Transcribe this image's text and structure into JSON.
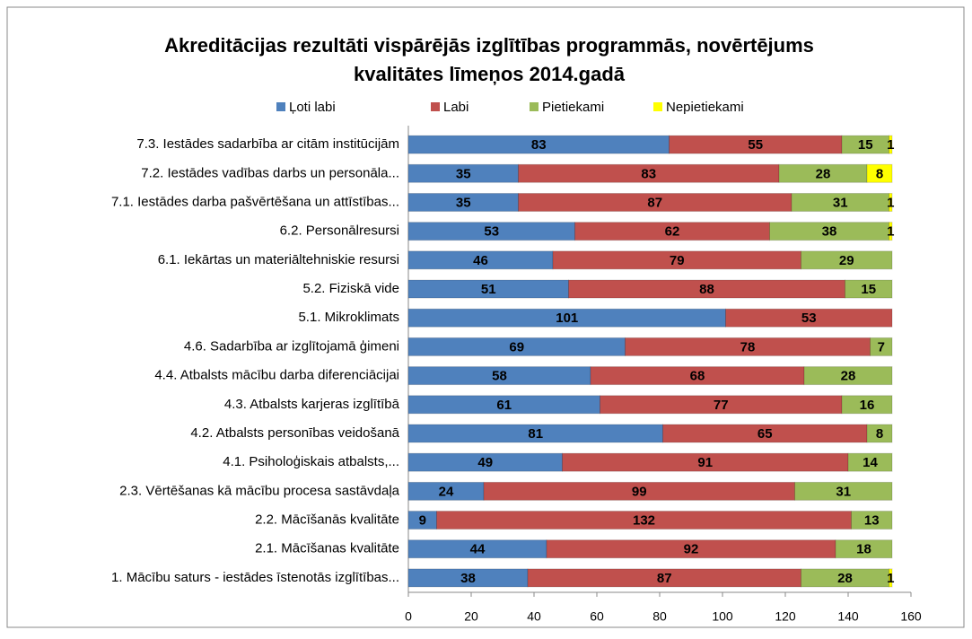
{
  "chart_data": {
    "type": "stacked-bar-horizontal",
    "title": [
      "Akreditācijas rezultāti vispārējās izglītības programmās, novērtējums",
      "kvalitātes līmeņos 2014.gadā"
    ],
    "categories": [
      "7.3. Iestādes sadarbība ar citām institūcijām",
      "7.2. Iestādes vadības darbs un personāla...",
      "7.1. Iestādes darba pašvērtēšana un attīstības...",
      "6.2. Personālresursi",
      "6.1. Iekārtas un materiāltehniskie resursi",
      "5.2. Fiziskā vide",
      "5.1. Mikroklimats",
      "4.6. Sadarbība ar izglītojamā ģimeni",
      "4.4. Atbalsts mācību darba diferenciācijai",
      "4.3. Atbalsts karjeras izglītībā",
      "4.2. Atbalsts personības veidošanā",
      "4.1. Psiholoģiskais atbalsts,...",
      "2.3. Vērtēšanas kā mācību procesa sastāvdaļa",
      "2.2. Mācīšanās kvalitāte",
      "2.1. Mācīšanas kvalitāte",
      "1. Mācību saturs - iestādes īstenotās izglītības..."
    ],
    "series": [
      {
        "name": "Ļoti labi",
        "color": "#4f81bd",
        "values": [
          83,
          35,
          35,
          53,
          46,
          51,
          101,
          69,
          58,
          61,
          81,
          49,
          24,
          9,
          44,
          38
        ]
      },
      {
        "name": "Labi",
        "color": "#c0504d",
        "values": [
          55,
          83,
          87,
          62,
          79,
          88,
          53,
          78,
          68,
          77,
          65,
          91,
          99,
          132,
          92,
          87
        ]
      },
      {
        "name": "Pietiekami",
        "color": "#9bbb59",
        "values": [
          15,
          28,
          31,
          38,
          29,
          15,
          null,
          7,
          28,
          16,
          8,
          14,
          31,
          13,
          18,
          28
        ]
      },
      {
        "name": "Nepietiekami",
        "color": "#ffff00",
        "values": [
          1,
          8,
          1,
          1,
          null,
          null,
          null,
          null,
          null,
          null,
          null,
          null,
          null,
          null,
          null,
          1
        ]
      }
    ],
    "xlim": [
      0,
      160
    ],
    "xticks": [
      0,
      20,
      40,
      60,
      80,
      100,
      120,
      140,
      160
    ],
    "legend": "top"
  }
}
